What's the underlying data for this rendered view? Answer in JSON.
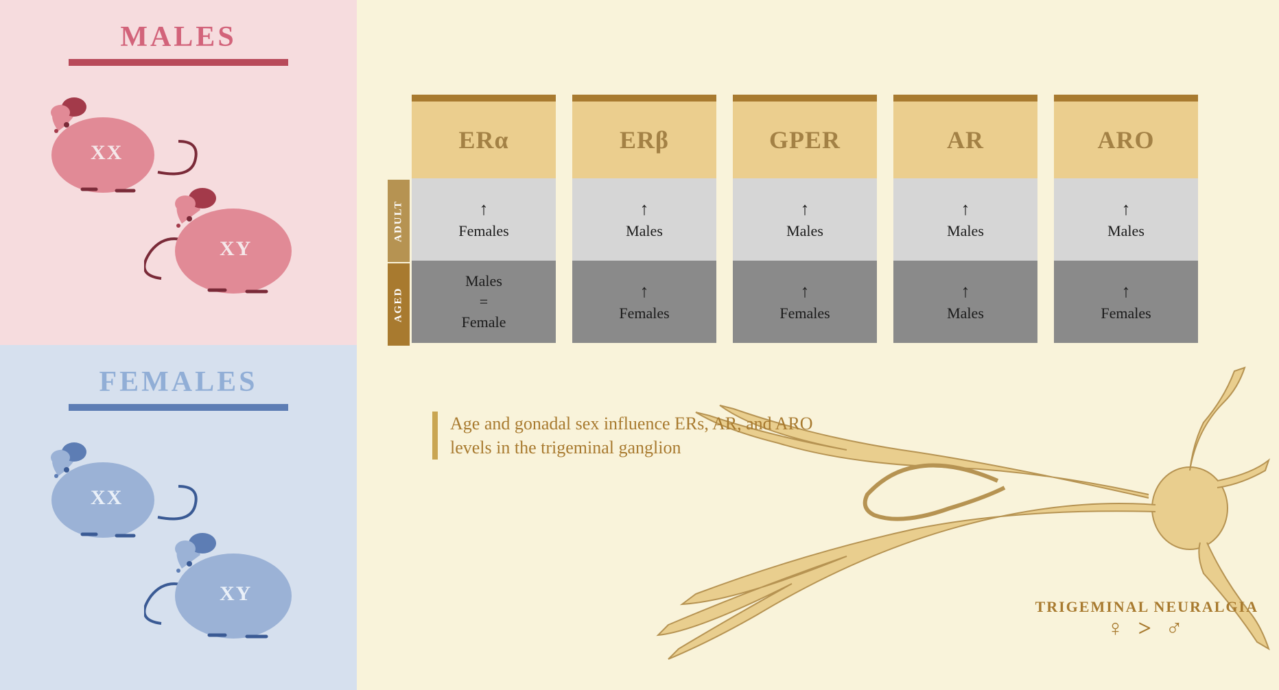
{
  "left": {
    "males": {
      "title": "MALES",
      "title_color": "#d2637a",
      "underline_color": "#b84a5a",
      "bg": "#f6dcde",
      "mouse_body": "#e18a96",
      "mouse_dark": "#a33a4a",
      "mouse_outline": "#7a2a38",
      "label_color": "#f5e8ea",
      "chrom1": "XX",
      "chrom2": "XY"
    },
    "females": {
      "title": "FEMALES",
      "title_color": "#91aed6",
      "underline_color": "#5d7db4",
      "bg": "#d6e0ee",
      "mouse_body": "#9bb2d6",
      "mouse_dark": "#5d7db4",
      "mouse_outline": "#3a5a94",
      "label_color": "#eaf0f8",
      "chrom1": "XX",
      "chrom2": "XY"
    }
  },
  "right": {
    "bg": "#f9f3da",
    "row_labels": {
      "adult": "ADULT",
      "aged": "AGED"
    },
    "row_colors": {
      "adult": "#b69352",
      "aged": "#a87a2f"
    },
    "columns": [
      {
        "head": "ERα",
        "top_color": "#a87a2f",
        "head_bg": "#ebce8e",
        "head_fg": "#a38145",
        "adult": {
          "arrow": "↑",
          "text": "Females"
        },
        "aged": {
          "lines": [
            "Males",
            "=",
            "Female"
          ]
        }
      },
      {
        "head": "ERβ",
        "top_color": "#a87a2f",
        "head_bg": "#ebce8e",
        "head_fg": "#a38145",
        "adult": {
          "arrow": "↑",
          "text": "Males"
        },
        "aged": {
          "arrow": "↑",
          "text": "Females"
        }
      },
      {
        "head": "GPER",
        "top_color": "#a87a2f",
        "head_bg": "#ebce8e",
        "head_fg": "#a38145",
        "adult": {
          "arrow": "↑",
          "text": "Males"
        },
        "aged": {
          "arrow": "↑",
          "text": "Females"
        }
      },
      {
        "head": "AR",
        "top_color": "#a87a2f",
        "head_bg": "#ebce8e",
        "head_fg": "#a38145",
        "adult": {
          "arrow": "↑",
          "text": "Males"
        },
        "aged": {
          "arrow": "↑",
          "text": "Males"
        }
      },
      {
        "head": "ARO",
        "top_color": "#a87a2f",
        "head_bg": "#ebce8e",
        "head_fg": "#a38145",
        "adult": {
          "arrow": "↑",
          "text": "Males"
        },
        "aged": {
          "arrow": "↑",
          "text": "Females"
        }
      }
    ],
    "caption": {
      "text": "Age and gonadal sex influence ERs, AR, and ARO levels in the trigeminal ganglion",
      "color": "#a87a2f",
      "border_color": "#c9a552"
    },
    "neuron_color": "#e9ce8e",
    "neuron_shadow": "#b69352",
    "neural_label": {
      "text": "TRIGEMINAL NEURALGIA",
      "symbols": "♀ > ♂",
      "color": "#a87a2f"
    }
  }
}
